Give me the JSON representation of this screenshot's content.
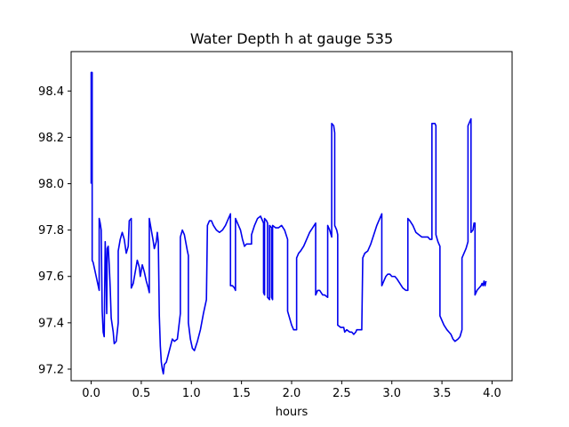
{
  "chart_data": {
    "type": "line",
    "title": "Water Depth h at gauge 535",
    "xlabel": "hours",
    "ylabel": "",
    "xlim": [
      -0.2,
      4.2
    ],
    "ylim": [
      97.15,
      98.57
    ],
    "x_ticks": [
      0.0,
      0.5,
      1.0,
      1.5,
      2.0,
      2.5,
      3.0,
      3.5,
      4.0
    ],
    "x_tick_labels": [
      "0.0",
      "0.5",
      "1.0",
      "1.5",
      "2.0",
      "2.5",
      "3.0",
      "3.5",
      "4.0"
    ],
    "y_ticks": [
      97.2,
      97.4,
      97.6,
      97.8,
      98.0,
      98.2,
      98.4
    ],
    "y_tick_labels": [
      "97.2",
      "97.4",
      "97.6",
      "97.8",
      "98.0",
      "98.2",
      "98.4"
    ],
    "grid": false,
    "legend": "none",
    "series": [
      {
        "color": "#0000ee",
        "points": [
          [
            0.0,
            98.0
          ],
          [
            0.0,
            98.48
          ],
          [
            0.01,
            98.48
          ],
          [
            0.01,
            97.67
          ],
          [
            0.02,
            97.66
          ],
          [
            0.03,
            97.64
          ],
          [
            0.05,
            97.6
          ],
          [
            0.07,
            97.56
          ],
          [
            0.08,
            97.54
          ],
          [
            0.08,
            97.85
          ],
          [
            0.09,
            97.83
          ],
          [
            0.1,
            97.8
          ],
          [
            0.11,
            97.45
          ],
          [
            0.12,
            97.36
          ],
          [
            0.13,
            97.34
          ],
          [
            0.14,
            97.75
          ],
          [
            0.15,
            97.6
          ],
          [
            0.155,
            97.44
          ],
          [
            0.16,
            97.72
          ],
          [
            0.17,
            97.73
          ],
          [
            0.18,
            97.65
          ],
          [
            0.19,
            97.55
          ],
          [
            0.2,
            97.42
          ],
          [
            0.22,
            97.36
          ],
          [
            0.23,
            97.31
          ],
          [
            0.25,
            97.32
          ],
          [
            0.26,
            97.36
          ],
          [
            0.27,
            97.4
          ],
          [
            0.27,
            97.71
          ],
          [
            0.29,
            97.76
          ],
          [
            0.31,
            97.79
          ],
          [
            0.33,
            97.76
          ],
          [
            0.35,
            97.7
          ],
          [
            0.37,
            97.73
          ],
          [
            0.38,
            97.84
          ],
          [
            0.4,
            97.85
          ],
          [
            0.4,
            97.55
          ],
          [
            0.42,
            97.57
          ],
          [
            0.44,
            97.62
          ],
          [
            0.46,
            97.67
          ],
          [
            0.48,
            97.64
          ],
          [
            0.49,
            97.6
          ],
          [
            0.51,
            97.65
          ],
          [
            0.53,
            97.62
          ],
          [
            0.55,
            97.58
          ],
          [
            0.57,
            97.55
          ],
          [
            0.58,
            97.53
          ],
          [
            0.58,
            97.85
          ],
          [
            0.6,
            97.8
          ],
          [
            0.62,
            97.75
          ],
          [
            0.63,
            97.72
          ],
          [
            0.65,
            97.75
          ],
          [
            0.66,
            97.79
          ],
          [
            0.67,
            97.75
          ],
          [
            0.68,
            97.43
          ],
          [
            0.69,
            97.3
          ],
          [
            0.7,
            97.23
          ],
          [
            0.71,
            97.2
          ],
          [
            0.72,
            97.18
          ],
          [
            0.73,
            97.22
          ],
          [
            0.75,
            97.23
          ],
          [
            0.78,
            97.28
          ],
          [
            0.81,
            97.33
          ],
          [
            0.83,
            97.32
          ],
          [
            0.86,
            97.33
          ],
          [
            0.89,
            97.44
          ],
          [
            0.89,
            97.77
          ],
          [
            0.91,
            97.8
          ],
          [
            0.93,
            97.78
          ],
          [
            0.96,
            97.71
          ],
          [
            0.97,
            97.69
          ],
          [
            0.97,
            97.4
          ],
          [
            0.99,
            97.33
          ],
          [
            1.01,
            97.29
          ],
          [
            1.03,
            97.28
          ],
          [
            1.06,
            97.32
          ],
          [
            1.09,
            97.37
          ],
          [
            1.12,
            97.44
          ],
          [
            1.15,
            97.5
          ],
          [
            1.16,
            97.82
          ],
          [
            1.18,
            97.84
          ],
          [
            1.2,
            97.84
          ],
          [
            1.22,
            97.82
          ],
          [
            1.25,
            97.8
          ],
          [
            1.28,
            97.79
          ],
          [
            1.31,
            97.8
          ],
          [
            1.34,
            97.82
          ],
          [
            1.37,
            97.85
          ],
          [
            1.39,
            97.87
          ],
          [
            1.39,
            97.56
          ],
          [
            1.41,
            97.56
          ],
          [
            1.43,
            97.55
          ],
          [
            1.44,
            97.54
          ],
          [
            1.44,
            97.85
          ],
          [
            1.46,
            97.83
          ],
          [
            1.49,
            97.8
          ],
          [
            1.51,
            97.76
          ],
          [
            1.53,
            97.73
          ],
          [
            1.55,
            97.74
          ],
          [
            1.58,
            97.74
          ],
          [
            1.6,
            97.74
          ],
          [
            1.6,
            97.78
          ],
          [
            1.63,
            97.82
          ],
          [
            1.66,
            97.85
          ],
          [
            1.69,
            97.86
          ],
          [
            1.72,
            97.83
          ],
          [
            1.72,
            97.53
          ],
          [
            1.73,
            97.52
          ],
          [
            1.73,
            97.85
          ],
          [
            1.75,
            97.84
          ],
          [
            1.76,
            97.83
          ],
          [
            1.76,
            97.51
          ],
          [
            1.78,
            97.5
          ],
          [
            1.78,
            97.82
          ],
          [
            1.8,
            97.81
          ],
          [
            1.8,
            97.51
          ],
          [
            1.81,
            97.5
          ],
          [
            1.81,
            97.82
          ],
          [
            1.84,
            97.81
          ],
          [
            1.87,
            97.81
          ],
          [
            1.9,
            97.82
          ],
          [
            1.93,
            97.8
          ],
          [
            1.96,
            97.76
          ],
          [
            1.96,
            97.45
          ],
          [
            1.98,
            97.42
          ],
          [
            2.0,
            97.39
          ],
          [
            2.02,
            97.37
          ],
          [
            2.05,
            97.37
          ],
          [
            2.05,
            97.68
          ],
          [
            2.07,
            97.7
          ],
          [
            2.09,
            97.71
          ],
          [
            2.12,
            97.73
          ],
          [
            2.15,
            97.76
          ],
          [
            2.18,
            97.79
          ],
          [
            2.21,
            97.81
          ],
          [
            2.24,
            97.83
          ],
          [
            2.24,
            97.52
          ],
          [
            2.26,
            97.54
          ],
          [
            2.28,
            97.54
          ],
          [
            2.31,
            97.52
          ],
          [
            2.33,
            97.52
          ],
          [
            2.36,
            97.51
          ],
          [
            2.36,
            97.82
          ],
          [
            2.38,
            97.8
          ],
          [
            2.4,
            97.77
          ],
          [
            2.4,
            98.26
          ],
          [
            2.42,
            98.25
          ],
          [
            2.43,
            98.22
          ],
          [
            2.43,
            97.82
          ],
          [
            2.45,
            97.8
          ],
          [
            2.46,
            97.78
          ],
          [
            2.46,
            97.39
          ],
          [
            2.49,
            97.38
          ],
          [
            2.52,
            97.38
          ],
          [
            2.53,
            97.36
          ],
          [
            2.55,
            97.37
          ],
          [
            2.58,
            97.36
          ],
          [
            2.6,
            97.36
          ],
          [
            2.62,
            97.35
          ],
          [
            2.64,
            97.36
          ],
          [
            2.65,
            97.37
          ],
          [
            2.68,
            97.37
          ],
          [
            2.7,
            97.37
          ],
          [
            2.71,
            97.68
          ],
          [
            2.73,
            97.7
          ],
          [
            2.76,
            97.71
          ],
          [
            2.79,
            97.74
          ],
          [
            2.82,
            97.78
          ],
          [
            2.85,
            97.82
          ],
          [
            2.88,
            97.85
          ],
          [
            2.9,
            97.87
          ],
          [
            2.9,
            97.56
          ],
          [
            2.92,
            97.58
          ],
          [
            2.94,
            97.6
          ],
          [
            2.96,
            97.61
          ],
          [
            2.98,
            97.61
          ],
          [
            3.0,
            97.6
          ],
          [
            3.03,
            97.6
          ],
          [
            3.05,
            97.59
          ],
          [
            3.08,
            97.57
          ],
          [
            3.11,
            97.55
          ],
          [
            3.14,
            97.54
          ],
          [
            3.16,
            97.54
          ],
          [
            3.16,
            97.85
          ],
          [
            3.18,
            97.84
          ],
          [
            3.21,
            97.82
          ],
          [
            3.24,
            97.79
          ],
          [
            3.27,
            97.78
          ],
          [
            3.3,
            97.77
          ],
          [
            3.33,
            97.77
          ],
          [
            3.36,
            97.77
          ],
          [
            3.38,
            97.76
          ],
          [
            3.4,
            97.76
          ],
          [
            3.4,
            98.26
          ],
          [
            3.43,
            98.26
          ],
          [
            3.44,
            98.25
          ],
          [
            3.44,
            97.78
          ],
          [
            3.46,
            97.75
          ],
          [
            3.48,
            97.73
          ],
          [
            3.48,
            97.43
          ],
          [
            3.5,
            97.41
          ],
          [
            3.52,
            97.39
          ],
          [
            3.55,
            97.37
          ],
          [
            3.57,
            97.36
          ],
          [
            3.59,
            97.35
          ],
          [
            3.61,
            97.33
          ],
          [
            3.63,
            97.32
          ],
          [
            3.66,
            97.33
          ],
          [
            3.68,
            97.34
          ],
          [
            3.7,
            97.37
          ],
          [
            3.7,
            97.68
          ],
          [
            3.72,
            97.7
          ],
          [
            3.74,
            97.72
          ],
          [
            3.76,
            97.75
          ],
          [
            3.76,
            98.25
          ],
          [
            3.78,
            98.27
          ],
          [
            3.79,
            98.28
          ],
          [
            3.79,
            97.79
          ],
          [
            3.81,
            97.8
          ],
          [
            3.82,
            97.83
          ],
          [
            3.83,
            97.83
          ],
          [
            3.83,
            97.52
          ],
          [
            3.85,
            97.54
          ],
          [
            3.87,
            97.55
          ],
          [
            3.89,
            97.56
          ],
          [
            3.9,
            97.57
          ],
          [
            3.91,
            97.56
          ],
          [
            3.92,
            97.58
          ],
          [
            3.93,
            97.56
          ],
          [
            3.94,
            97.58
          ]
        ]
      }
    ]
  }
}
